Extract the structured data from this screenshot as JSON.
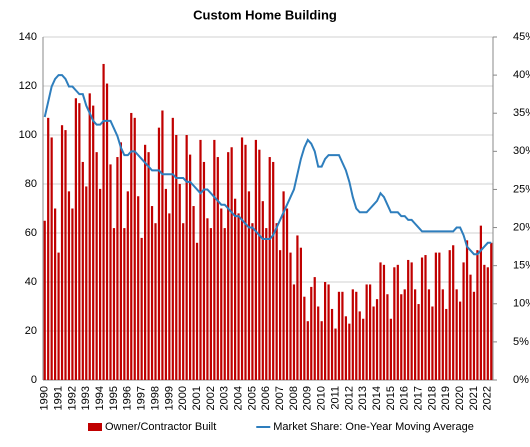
{
  "chart_data": {
    "type": "bar",
    "title": "Custom Home Building",
    "categories": [
      "1990",
      null,
      null,
      null,
      "1991",
      null,
      null,
      null,
      "1992",
      null,
      null,
      null,
      "1993",
      null,
      null,
      null,
      "1994",
      null,
      null,
      null,
      "1995",
      null,
      null,
      null,
      "1996",
      null,
      null,
      null,
      "1997",
      null,
      null,
      null,
      "1998",
      null,
      null,
      null,
      "1999",
      null,
      null,
      null,
      "2000",
      null,
      null,
      null,
      "2001",
      null,
      null,
      null,
      "2002",
      null,
      null,
      null,
      "2003",
      null,
      null,
      null,
      "2004",
      null,
      null,
      null,
      "2005",
      null,
      null,
      null,
      "2006",
      null,
      null,
      null,
      "2007",
      null,
      null,
      null,
      "2008",
      null,
      null,
      null,
      "2009",
      null,
      null,
      null,
      "2010",
      null,
      null,
      null,
      "2011",
      null,
      null,
      null,
      "2012",
      null,
      null,
      null,
      "2013",
      null,
      null,
      null,
      "2014",
      null,
      null,
      null,
      "2015",
      null,
      null,
      null,
      "2016",
      null,
      null,
      null,
      "2017",
      null,
      null,
      null,
      "2018",
      null,
      null,
      null,
      "2019",
      null,
      null,
      null,
      "2020",
      null,
      null,
      null,
      "2021",
      null,
      null,
      null,
      "2022",
      null
    ],
    "series": [
      {
        "name": "Owner/Contractor Built",
        "color": "#c00000",
        "type": "bar",
        "values": [
          65,
          107,
          99,
          70,
          52,
          104,
          102,
          77,
          70,
          115,
          113,
          89,
          79,
          117,
          112,
          93,
          78,
          129,
          121,
          88,
          62,
          91,
          97,
          62,
          77,
          109,
          107,
          75,
          58,
          96,
          93,
          71,
          64,
          103,
          110,
          78,
          68,
          107,
          100,
          80,
          64,
          100,
          92,
          71,
          56,
          98,
          89,
          66,
          62,
          98,
          91,
          70,
          62,
          93,
          95,
          74,
          68,
          99,
          96,
          77,
          64,
          98,
          94,
          73,
          62,
          91,
          89,
          64,
          53,
          77,
          70,
          52,
          39,
          59,
          54,
          34,
          24,
          38,
          42,
          30,
          24,
          40,
          39,
          29,
          21,
          36,
          36,
          26,
          23,
          37,
          36,
          28,
          25,
          39,
          39,
          30,
          33,
          48,
          47,
          35,
          25,
          46,
          47,
          35,
          37,
          49,
          48,
          37,
          31,
          50,
          51,
          37,
          30,
          52,
          52,
          37,
          29,
          53,
          55,
          37,
          32,
          48,
          57,
          43,
          36,
          53,
          63,
          47,
          46,
          56
        ]
      },
      {
        "name": "Market Share: One-Year Moving Average",
        "color": "#2e7ebd",
        "type": "line",
        "axis": "y2",
        "values": [
          34.5,
          36.5,
          38.5,
          39.5,
          40,
          40,
          39.5,
          38.5,
          38.5,
          38,
          37.5,
          37.5,
          36,
          35,
          34,
          33.5,
          33.5,
          34,
          34,
          34,
          33,
          32,
          30.5,
          29.5,
          29.5,
          30,
          30,
          29.5,
          29,
          28.5,
          28,
          27.5,
          27.5,
          27.5,
          27,
          27,
          27,
          27,
          26.5,
          26.5,
          26.5,
          26,
          26,
          25.5,
          25,
          24.5,
          25,
          25,
          24.5,
          24,
          23.5,
          23,
          23,
          22.5,
          22,
          21.5,
          21.5,
          21,
          20.5,
          20,
          20,
          19.5,
          19,
          18.5,
          18.5,
          18.5,
          19,
          20,
          21,
          22,
          23,
          24,
          25,
          27,
          29,
          30.5,
          31.5,
          31,
          30,
          28,
          28,
          29,
          29.5,
          29.5,
          29.5,
          29.5,
          28.5,
          27.5,
          26,
          24,
          22.5,
          22,
          22,
          22,
          22.5,
          23,
          23.5,
          24.5,
          24,
          23,
          22,
          22,
          22,
          21.5,
          21.5,
          21,
          21,
          20.5,
          20,
          19.5,
          19.5,
          19.5,
          19.5,
          19.5,
          19.5,
          19.5,
          19.5,
          19.5,
          19.5,
          20,
          20,
          19,
          17.5,
          17,
          16.5,
          16.5,
          17,
          17.5,
          18,
          18
        ]
      }
    ],
    "ylim": [
      0,
      140
    ],
    "yticks": [
      0,
      20,
      40,
      60,
      80,
      100,
      120,
      140
    ],
    "y2lim": [
      0,
      45
    ],
    "y2ticks": [
      {
        "value": 0,
        "label": "0%"
      },
      {
        "value": 5,
        "label": "5%"
      },
      {
        "value": 10,
        "label": "10%"
      },
      {
        "value": 15,
        "label": "15%"
      },
      {
        "value": 20,
        "label": "20%"
      },
      {
        "value": 25,
        "label": "25%"
      },
      {
        "value": 30,
        "label": "30%"
      },
      {
        "value": 35,
        "label": "35%"
      },
      {
        "value": 40,
        "label": "40%"
      },
      {
        "value": 45,
        "label": "45%"
      }
    ],
    "grid": true,
    "legend": "bottom"
  }
}
